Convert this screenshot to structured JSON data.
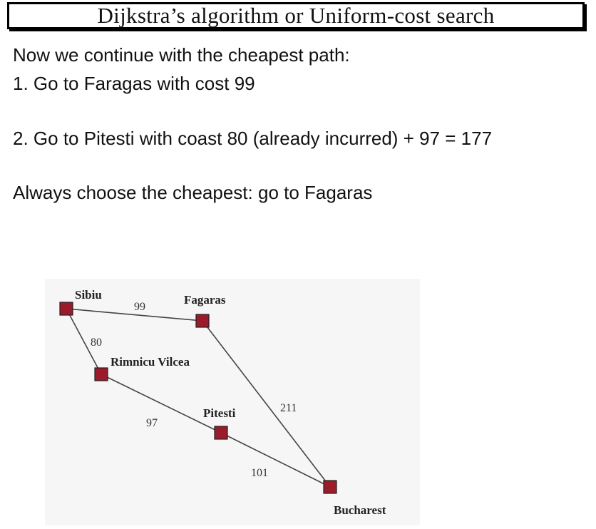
{
  "title": "Dijkstra’s algorithm or Uniform-cost search",
  "lines": [
    "Now we continue with the cheapest path:",
    "1. Go to Faragas with cost 99",
    "2. Go to Pitesti with coast 80 (already incurred) + 97 = 177",
    "Always choose the cheapest: go to Fagaras"
  ],
  "graph": {
    "node_color": "#9b1b2a",
    "nodes": {
      "sibiu": "Sibiu",
      "fagaras": "Fagaras",
      "rimnicu": "Rimnicu Vilcea",
      "pitesti": "Pitesti",
      "bucharest": "Bucharest"
    },
    "edges": {
      "sibiu_fagaras": "99",
      "sibiu_rimnicu": "80",
      "rimnicu_pitesti": "97",
      "fagaras_bucharest": "211",
      "pitesti_bucharest": "101"
    }
  }
}
